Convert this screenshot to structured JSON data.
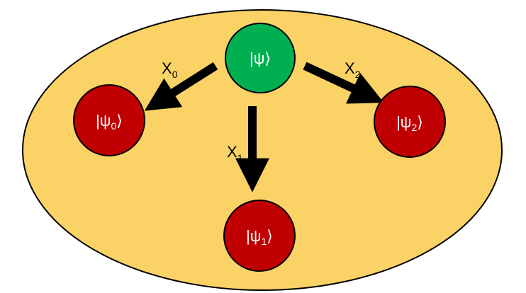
{
  "colors": {
    "ellipse_fill": "#FAD266",
    "ellipse_stroke": "#000000",
    "root_fill": "#00B050",
    "leaf_fill": "#C00000",
    "arrow": "#000000"
  },
  "nodes": {
    "root": {
      "label": "|ψ⟩"
    },
    "n0": {
      "label_main": "|ψ",
      "label_sub": "0",
      "label_end": "⟩"
    },
    "n1": {
      "label_main": "|ψ",
      "label_sub": "1",
      "label_end": "⟩"
    },
    "n2": {
      "label_main": "|ψ",
      "label_sub": "2",
      "label_end": "⟩"
    }
  },
  "edges": {
    "e0": {
      "label_main": "X",
      "label_sub": "0"
    },
    "e1": {
      "label_main": "X",
      "label_sub": "1"
    },
    "e2": {
      "label_main": "X",
      "label_sub": "2"
    }
  }
}
